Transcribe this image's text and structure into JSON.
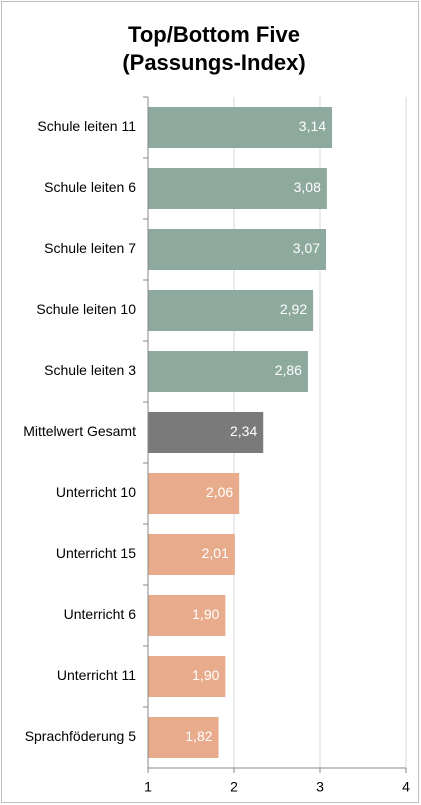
{
  "chart_data": {
    "type": "barh",
    "title": "Top/Bottom Five",
    "subtitle": "(Passungs-Index)",
    "categories": [
      "Schule leiten 11",
      "Schule leiten 6",
      "Schule leiten 7",
      "Schule leiten 10",
      "Schule leiten 3",
      "Mittelwert Gesamt",
      "Unterricht 10",
      "Unterricht 15",
      "Unterricht 6",
      "Unterricht 11",
      "Sprachföderung 5"
    ],
    "values": [
      3.14,
      3.08,
      3.07,
      2.92,
      2.86,
      2.34,
      2.06,
      2.01,
      1.9,
      1.9,
      1.82
    ],
    "value_labels": [
      "3,14",
      "3,08",
      "3,07",
      "2,92",
      "2,86",
      "2,34",
      "2,06",
      "2,01",
      "1,90",
      "1,90",
      "1,82"
    ],
    "colors": [
      "#8ea99d",
      "#8ea99d",
      "#8ea99d",
      "#8ea99d",
      "#8ea99d",
      "#7a7a7a",
      "#e8ac8d",
      "#e8ac8d",
      "#e8ac8d",
      "#e8ac8d",
      "#e8ac8d"
    ],
    "xlim": [
      1,
      4
    ],
    "xticks": [
      1,
      2,
      3,
      4
    ],
    "grid": true
  }
}
